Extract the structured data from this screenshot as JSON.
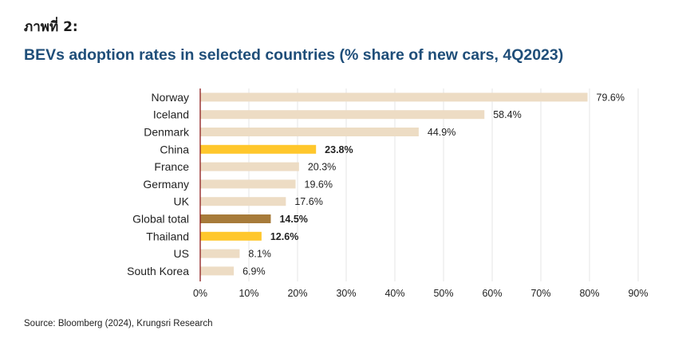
{
  "figure_label": "ภาพที่ 2:",
  "source": "Source: Bloomberg (2024), Krungsri Research",
  "chart_data": {
    "type": "bar",
    "orientation": "horizontal",
    "title": "BEVs adoption rates in selected countries (% share of new cars, 4Q2023)",
    "xlabel": "",
    "ylabel": "",
    "xlim": [
      0,
      90
    ],
    "x_ticks": [
      0,
      10,
      20,
      30,
      40,
      50,
      60,
      70,
      80,
      90
    ],
    "x_tick_labels": [
      "0%",
      "10%",
      "20%",
      "30%",
      "40%",
      "50%",
      "60%",
      "70%",
      "80%",
      "90%"
    ],
    "grid": "vertical",
    "categories": [
      "Norway",
      "Iceland",
      "Denmark",
      "China",
      "France",
      "Germany",
      "UK",
      "Global total",
      "Thailand",
      "US",
      "South Korea"
    ],
    "values": [
      79.6,
      58.4,
      44.9,
      23.8,
      20.3,
      19.6,
      17.6,
      14.5,
      12.6,
      8.1,
      6.9
    ],
    "value_labels": [
      "79.6%",
      "58.4%",
      "44.9%",
      "23.8%",
      "20.3%",
      "19.6%",
      "17.6%",
      "14.5%",
      "12.6%",
      "8.1%",
      "6.9%"
    ],
    "highlight": [
      "",
      "",
      "",
      "highlight",
      "",
      "",
      "",
      "global",
      "highlight",
      "",
      ""
    ],
    "colors": {
      "default": "#eddcc4",
      "highlight": "#ffc72c",
      "global": "#a77b3a",
      "axis": "#8b1a1a",
      "grid": "#e6e6e6"
    }
  }
}
